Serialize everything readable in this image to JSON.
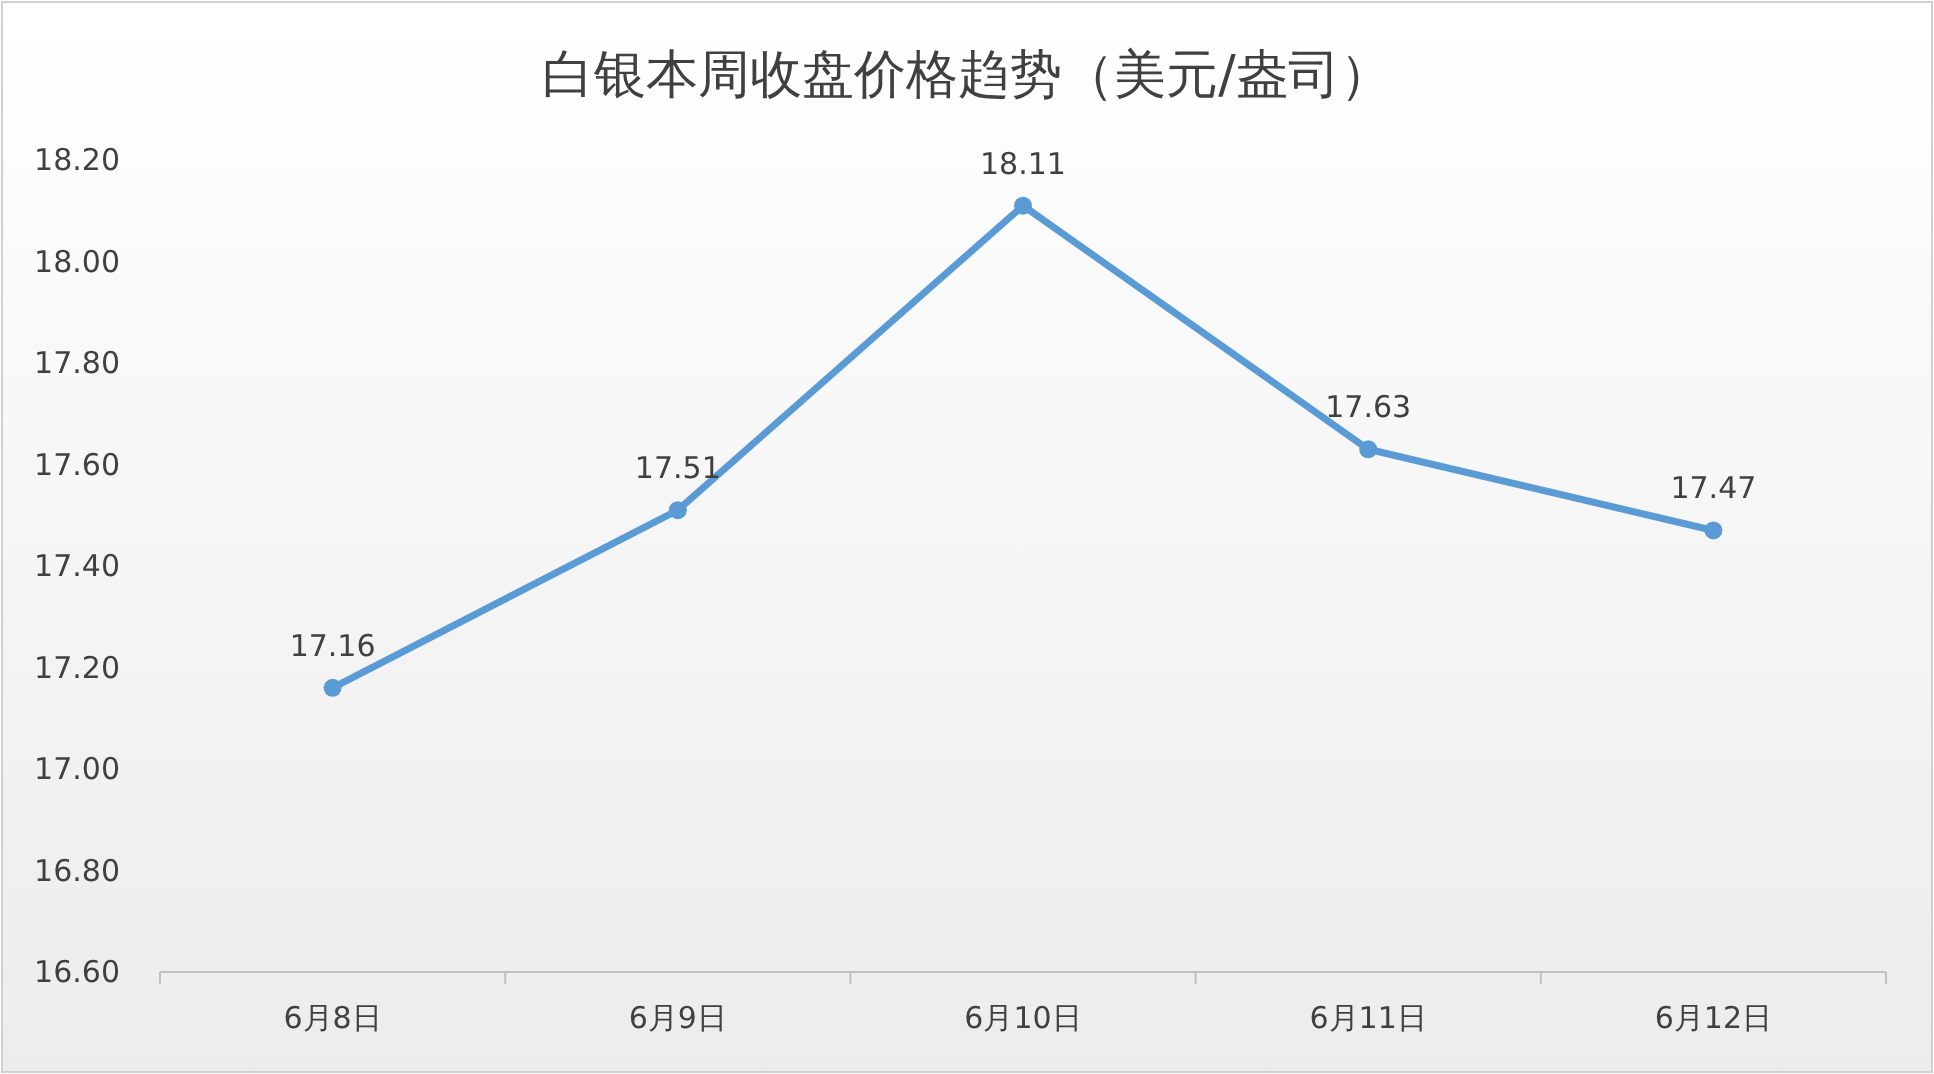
{
  "chart_data": {
    "type": "line",
    "title": "白银本周收盘价格趋势（美元/盎司）",
    "categories": [
      "6月8日",
      "6月9日",
      "6月10日",
      "6月11日",
      "6月12日"
    ],
    "series": [
      {
        "color": "#5b9bd5",
        "values": [
          17.16,
          17.51,
          18.11,
          17.63,
          17.47
        ]
      }
    ],
    "ylim": [
      16.6,
      18.2
    ],
    "yticks": [
      {
        "value": 16.6,
        "label": "16.60"
      },
      {
        "value": 16.8,
        "label": "16.80"
      },
      {
        "value": 17.0,
        "label": "17.00"
      },
      {
        "value": 17.2,
        "label": "17.20"
      },
      {
        "value": 17.4,
        "label": "17.40"
      },
      {
        "value": 17.6,
        "label": "17.60"
      },
      {
        "value": 17.8,
        "label": "17.80"
      },
      {
        "value": 18.0,
        "label": "18.00"
      },
      {
        "value": 18.2,
        "label": "18.20"
      }
    ],
    "data_labels": true,
    "marker": "circle",
    "line_style": "solid"
  }
}
